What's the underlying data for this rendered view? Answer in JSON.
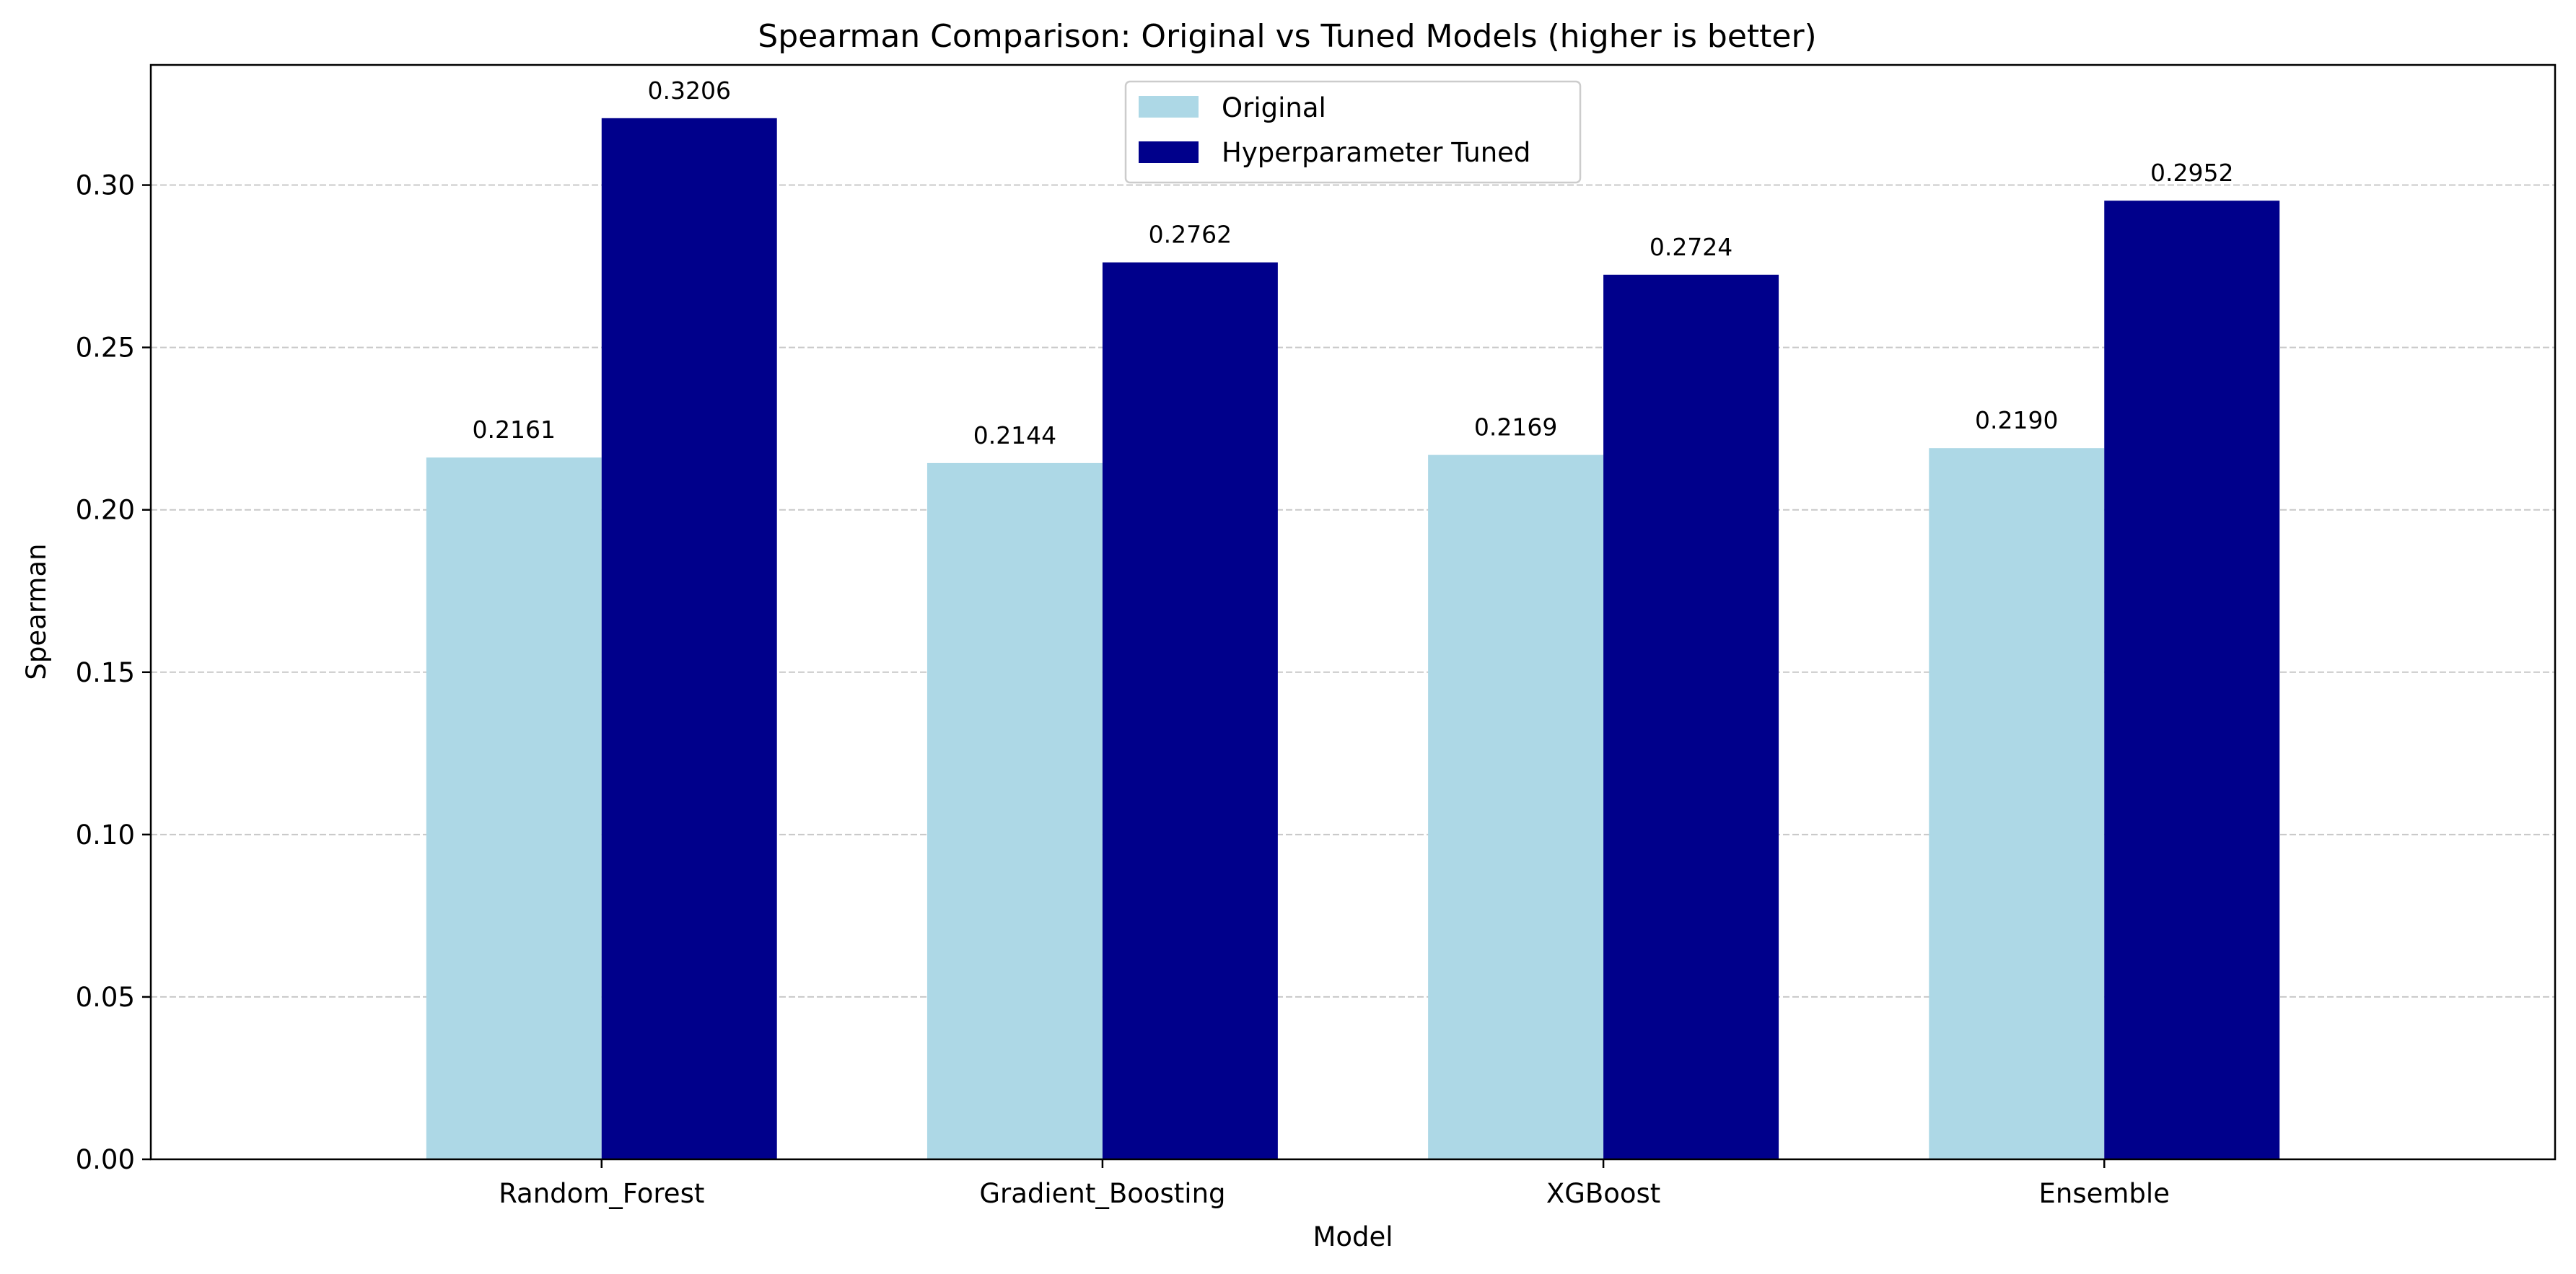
{
  "chart_data": {
    "type": "bar",
    "title": "Spearman Comparison: Original vs Tuned Models (higher is better)",
    "xlabel": "Model",
    "ylabel": "Spearman",
    "categories": [
      "Random_Forest",
      "Gradient_Boosting",
      "XGBoost",
      "Ensemble"
    ],
    "series": [
      {
        "name": "Original",
        "values": [
          0.2161,
          0.2144,
          0.2169,
          0.219
        ],
        "labels": [
          "0.2161",
          "0.2144",
          "0.2169",
          "0.2190"
        ],
        "color": "#add8e6"
      },
      {
        "name": "Hyperparameter Tuned",
        "values": [
          0.3206,
          0.2762,
          0.2724,
          0.2952
        ],
        "labels": [
          "0.3206",
          "0.2762",
          "0.2724",
          "0.2952"
        ],
        "color": "#00008b"
      }
    ],
    "ylim": [
      0,
      0.337
    ],
    "yticks": [
      0.0,
      0.05,
      0.1,
      0.15,
      0.2,
      0.25,
      0.3
    ],
    "ytick_labels": [
      "0.00",
      "0.05",
      "0.10",
      "0.15",
      "0.20",
      "0.25",
      "0.30"
    ],
    "grid": "y-dashed",
    "legend_position": "top-center"
  }
}
